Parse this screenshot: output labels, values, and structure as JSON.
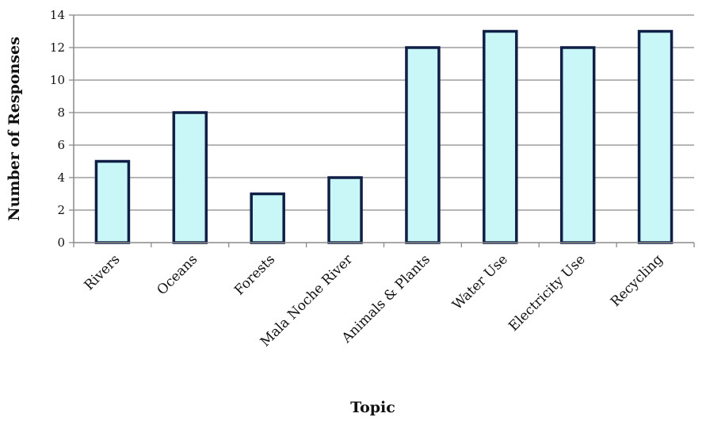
{
  "chart_data": {
    "type": "bar",
    "title": "",
    "xlabel": "Topic",
    "ylabel": "Number of Responses",
    "categories": [
      "Rivers",
      "Oceans",
      "Forests",
      "Mala Noche River",
      "Animals & Plants",
      "Water Use",
      "Electricity Use",
      "Recycling"
    ],
    "values": [
      5,
      8,
      3,
      4,
      12,
      13,
      12,
      13
    ],
    "ylim": [
      0,
      14
    ],
    "yticks": [
      0,
      2,
      4,
      6,
      8,
      10,
      12,
      14
    ],
    "grid": true,
    "legend": "none",
    "colors": {
      "bar_fill": "#c9f6f6",
      "bar_stroke": "#0f1f45",
      "grid": "#8a8a8a",
      "axis": "#8a8a8a",
      "text": "#111111"
    }
  }
}
